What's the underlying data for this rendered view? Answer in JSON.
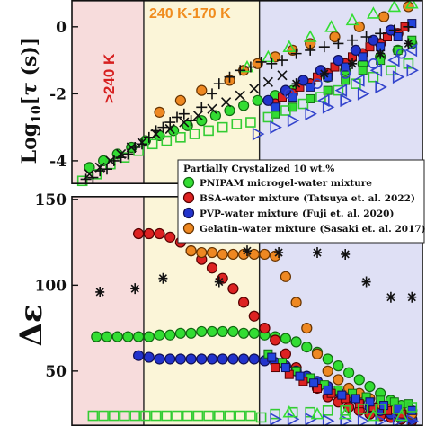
{
  "chart_data": [
    {
      "type": "scatter",
      "panel": "top",
      "ylabel": "Log10[τ (s)]",
      "ylabel_parts": {
        "main": "Log",
        "sub": "10",
        "rest": "[",
        "tau": "τ",
        "unit": " (s)]"
      },
      "yticks": [
        {
          "value": 0,
          "label": "0"
        },
        {
          "value": -2,
          "label": "-2"
        },
        {
          "value": -4,
          "label": "-4"
        }
      ],
      "ylim": [
        -4.7,
        0.8
      ],
      "xlim": [
        0,
        100
      ],
      "regions": [
        {
          "label": ">240 K",
          "x0": 0,
          "x1": 20.5,
          "color": "#f7dcdc",
          "text_color": "#d62020"
        },
        {
          "label": "240 K-170 K",
          "x0": 20.5,
          "x1": 53.5,
          "color": "#fbf5d8",
          "text_color": "#f08c1e"
        },
        {
          "label": "",
          "x0": 53.5,
          "x1": 100,
          "color": "#dfe0f5",
          "text_color": ""
        }
      ],
      "series": [
        {
          "marker": "circle",
          "fill": "#33dd33",
          "stroke": "#116611",
          "x": [
            5,
            9,
            13,
            17,
            21,
            25,
            29,
            33,
            37,
            41,
            45,
            49,
            53,
            58,
            63,
            68,
            73,
            78,
            83,
            88,
            93,
            97
          ],
          "y": [
            -4.2,
            -4.0,
            -3.8,
            -3.6,
            -3.4,
            -3.25,
            -3.1,
            -2.95,
            -2.8,
            -2.65,
            -2.5,
            -2.35,
            -2.2,
            -2.05,
            -1.9,
            -1.7,
            -1.5,
            -1.3,
            -1.1,
            -0.9,
            -0.7,
            -0.5
          ]
        },
        {
          "marker": "square",
          "fill": "#33dd33",
          "stroke": "#116611",
          "x": [
            58,
            63,
            68,
            73,
            78,
            83,
            88,
            93,
            97
          ],
          "y": [
            -2.6,
            -2.4,
            -2.15,
            -1.9,
            -1.6,
            -1.3,
            -1.0,
            -0.7,
            -0.4
          ]
        },
        {
          "marker": "circle",
          "fill": "#dd2222",
          "stroke": "#550000",
          "x": [
            58,
            63,
            68,
            73,
            78,
            83,
            88,
            93
          ],
          "y": [
            -2.3,
            -2.0,
            -1.7,
            -1.4,
            -1.1,
            -0.8,
            -0.5,
            -0.2
          ]
        },
        {
          "marker": "square",
          "fill": "#dd2222",
          "stroke": "#550000",
          "x": [
            60,
            65,
            70,
            75,
            80,
            85,
            90,
            95
          ],
          "y": [
            -2.1,
            -1.8,
            -1.5,
            -1.2,
            -0.9,
            -0.6,
            -0.3,
            0.0
          ]
        },
        {
          "marker": "square",
          "fill": "#2244dd",
          "stroke": "#111155",
          "x": [
            58,
            63,
            68,
            73,
            78,
            83,
            88,
            93,
            97
          ],
          "y": [
            -2.4,
            -2.1,
            -1.8,
            -1.5,
            -1.2,
            -0.9,
            -0.6,
            -0.3,
            0.1
          ]
        },
        {
          "marker": "circle",
          "fill": "#2233cc",
          "stroke": "#111155",
          "x": [
            56,
            61,
            66,
            71,
            76,
            81,
            86,
            91
          ],
          "y": [
            -2.2,
            -1.9,
            -1.6,
            -1.3,
            -1.0,
            -0.7,
            -0.4,
            -0.1
          ]
        },
        {
          "marker": "circle",
          "fill": "#ee8822",
          "stroke": "#663300",
          "x": [
            25,
            31,
            37,
            45,
            49,
            53,
            58,
            63,
            68,
            75,
            82,
            89,
            96
          ],
          "y": [
            -2.55,
            -2.2,
            -1.9,
            -1.6,
            -1.3,
            -1.1,
            -0.9,
            -0.7,
            -0.5,
            -0.3,
            0.0,
            0.3,
            0.6
          ]
        },
        {
          "marker": "open-square",
          "stroke": "#33cc33",
          "x": [
            3,
            7,
            11,
            15,
            19,
            23,
            27,
            31,
            35,
            39,
            43,
            47,
            51
          ],
          "y": [
            -4.6,
            -4.4,
            -4.1,
            -3.9,
            -3.7,
            -3.5,
            -3.4,
            -3.3,
            -3.2,
            -3.1,
            -3.0,
            -2.9,
            -2.85
          ]
        },
        {
          "marker": "open-square",
          "stroke": "#33cc33",
          "x": [
            56,
            61,
            66,
            71,
            76,
            81,
            86,
            91,
            96
          ],
          "y": [
            -2.7,
            -2.5,
            -2.3,
            -2.1,
            -1.9,
            -1.7,
            -1.5,
            -1.3,
            -1.1
          ]
        },
        {
          "marker": "open-tri-up",
          "stroke": "#33dd33",
          "x": [
            50,
            56,
            62,
            68,
            74,
            80,
            86,
            92,
            97
          ],
          "y": [
            -1.2,
            -0.9,
            -0.6,
            -0.3,
            0.0,
            0.2,
            0.4,
            0.6,
            0.7
          ]
        },
        {
          "marker": "open-tri-right",
          "stroke": "#3344cc",
          "x": [
            53,
            58,
            63,
            68,
            73,
            78,
            83,
            88,
            93,
            97
          ],
          "y": [
            -3.2,
            -3.0,
            -2.8,
            -2.6,
            -2.4,
            -2.2,
            -2.0,
            -1.8,
            -1.5,
            -1.3
          ]
        },
        {
          "marker": "open-tri-left",
          "stroke": "#3344cc",
          "x": [
            72,
            77,
            82,
            87,
            92,
            97
          ],
          "y": [
            -2.2,
            -1.9,
            -1.6,
            -1.3,
            -1.0,
            -0.7
          ]
        },
        {
          "marker": "open-circle",
          "stroke": "#3344cc",
          "x": [
            62,
            70,
            78,
            86,
            94
          ],
          "y": [
            -2.0,
            -1.7,
            -1.4,
            -1.1,
            -0.8
          ]
        },
        {
          "marker": "plus",
          "stroke": "#111111",
          "x": [
            4,
            6,
            8,
            10,
            12,
            14,
            16,
            18,
            20,
            22,
            24,
            26,
            28,
            30,
            32,
            34,
            37,
            40,
            42,
            45,
            48,
            51,
            54,
            57,
            60,
            64,
            68,
            72,
            76,
            80,
            84,
            88,
            92,
            96
          ],
          "y": [
            -4.55,
            -4.5,
            -4.3,
            -4.25,
            -4.0,
            -3.9,
            -3.8,
            -3.6,
            -3.5,
            -3.3,
            -3.1,
            -3.0,
            -2.85,
            -2.7,
            -2.6,
            -2.8,
            -2.4,
            -2.0,
            -1.7,
            -1.5,
            -1.3,
            -1.2,
            -1.05,
            -1.1,
            -1.0,
            -0.8,
            -0.7,
            -0.6,
            -0.5,
            -0.4,
            -0.3,
            -0.2,
            -0.1,
            0.0
          ]
        },
        {
          "marker": "cross",
          "stroke": "#111111",
          "x": [
            5,
            8,
            11,
            14,
            17,
            20,
            24,
            28,
            32,
            36,
            40,
            44,
            48,
            52,
            56,
            60
          ],
          "y": [
            -4.4,
            -4.2,
            -4.0,
            -3.8,
            -3.6,
            -3.45,
            -3.2,
            -3.05,
            -2.85,
            -2.65,
            -2.45,
            -2.25,
            -2.05,
            -1.85,
            -1.65,
            -1.45
          ]
        },
        {
          "marker": "star",
          "stroke": "#111111",
          "x": [
            64,
            72,
            80,
            88,
            96
          ],
          "y": [
            -1.7,
            -1.4,
            -1.1,
            -0.8,
            -0.5
          ]
        }
      ]
    },
    {
      "type": "scatter",
      "panel": "bottom",
      "ylabel": "Δε",
      "yticks": [
        {
          "value": 50,
          "label": "50"
        },
        {
          "value": 100,
          "label": "100"
        },
        {
          "value": 150,
          "label": "150"
        }
      ],
      "ylim": [
        18,
        152
      ],
      "xlim": [
        0,
        100
      ],
      "legend": {
        "placement": "top-right",
        "title": "Partially Crystalized 10 wt.%",
        "entries": [
          {
            "label": "PNIPAM microgel-water mixture",
            "fill": "#33dd33",
            "stroke": "#116611"
          },
          {
            "label": "BSA-water mixture (Tatsuya et. al. 2022)",
            "fill": "#dd2222",
            "stroke": "#550000"
          },
          {
            "label": "PVP-water mixture (Fuji et. al. 2020)",
            "fill": "#2233cc",
            "stroke": "#111155"
          },
          {
            "label": "Gelatin-water mixture (Sasaki et. al. 2017)",
            "fill": "#ee8822",
            "stroke": "#663300"
          }
        ]
      },
      "series": [
        {
          "marker": "circle",
          "fill": "#33dd33",
          "stroke": "#116611",
          "x": [
            7,
            10,
            13,
            16,
            19,
            22,
            25,
            28,
            31,
            34,
            37,
            40,
            43,
            46,
            49,
            52,
            55,
            58,
            61,
            64,
            67,
            70,
            73,
            76,
            79,
            82,
            85,
            88,
            91,
            94,
            97
          ],
          "y": [
            70,
            70,
            70,
            70,
            70,
            70,
            71,
            71,
            72,
            72,
            73,
            73,
            73,
            73,
            72,
            72,
            71,
            70,
            69,
            67,
            64,
            61,
            57,
            53,
            49,
            45,
            41,
            37,
            33,
            30,
            27
          ]
        },
        {
          "marker": "circle",
          "fill": "#dd2222",
          "stroke": "#550000",
          "x": [
            19,
            22,
            25,
            28,
            31,
            34,
            37,
            40,
            43,
            46,
            49,
            52,
            55,
            58,
            61,
            64,
            67,
            70,
            73,
            76,
            79,
            82,
            85,
            88,
            91,
            94,
            97
          ],
          "y": [
            130,
            130,
            130,
            128,
            125,
            120,
            115,
            110,
            104,
            98,
            90,
            82,
            75,
            68,
            60,
            52,
            46,
            40,
            35,
            32,
            29,
            27,
            25,
            24,
            23,
            22,
            21
          ]
        },
        {
          "marker": "circle",
          "fill": "#2233cc",
          "stroke": "#111155",
          "x": [
            19,
            22,
            25,
            28,
            31,
            34,
            37,
            40,
            43,
            46,
            49,
            52,
            55,
            58,
            61,
            64,
            67,
            70,
            73,
            76,
            79,
            82,
            85,
            88,
            91,
            94,
            97
          ],
          "y": [
            59,
            58,
            57,
            57,
            57,
            57,
            57,
            57,
            57,
            57,
            57,
            57,
            56,
            55,
            53,
            50,
            47,
            44,
            41,
            38,
            35,
            32,
            29,
            27,
            25,
            23,
            22
          ]
        },
        {
          "marker": "circle",
          "fill": "#ee8822",
          "stroke": "#663300",
          "x": [
            34,
            37,
            40,
            43,
            46,
            49,
            52,
            55,
            58,
            61,
            64,
            67,
            70,
            73,
            76,
            79,
            82,
            85,
            88,
            91,
            94,
            97
          ],
          "y": [
            120,
            119,
            119,
            118,
            118,
            118,
            118,
            118,
            117,
            105,
            90,
            75,
            60,
            50,
            45,
            40,
            37,
            34,
            31,
            28,
            26,
            25
          ]
        },
        {
          "marker": "square",
          "fill": "#33dd33",
          "stroke": "#116611",
          "x": [
            56,
            60,
            64,
            68,
            72,
            76,
            80,
            84,
            88,
            92,
            96
          ],
          "y": [
            60,
            55,
            50,
            46,
            42,
            39,
            37,
            35,
            33,
            32,
            31
          ]
        },
        {
          "marker": "square",
          "fill": "#dd2222",
          "stroke": "#550000",
          "x": [
            58,
            62,
            66,
            70,
            74,
            78,
            82,
            86,
            90,
            94
          ],
          "y": [
            52,
            48,
            44,
            40,
            37,
            34,
            31,
            29,
            27,
            25
          ]
        },
        {
          "marker": "square",
          "fill": "#2244dd",
          "stroke": "#111155",
          "x": [
            57,
            61,
            65,
            69,
            73,
            77,
            81,
            85,
            89,
            93,
            97
          ],
          "y": [
            58,
            52,
            47,
            43,
            39,
            36,
            34,
            32,
            30,
            28,
            27
          ]
        },
        {
          "marker": "open-square",
          "stroke": "#33cc33",
          "x": [
            6,
            9,
            12,
            15,
            18,
            21,
            24,
            27,
            30,
            33,
            36,
            39,
            42,
            45,
            48,
            51,
            54
          ],
          "y": [
            24,
            24,
            24,
            24,
            24,
            24,
            24,
            24,
            24,
            24,
            24,
            24,
            24,
            24,
            24,
            24,
            23
          ]
        },
        {
          "marker": "open-square",
          "stroke": "#33cc33",
          "x": [
            58,
            63,
            68,
            73,
            78,
            83,
            88,
            93,
            97
          ],
          "y": [
            25,
            26,
            26,
            27,
            27,
            28,
            28,
            28,
            29
          ]
        },
        {
          "marker": "open-tri-right",
          "stroke": "#3344cc",
          "x": [
            58,
            63,
            68,
            73,
            78,
            83,
            88,
            93,
            97
          ],
          "y": [
            22,
            22,
            22,
            21,
            21,
            21,
            21,
            21,
            21
          ]
        },
        {
          "marker": "open-tri-up",
          "stroke": "#33dd33",
          "x": [
            62,
            70,
            78,
            86,
            94
          ],
          "y": [
            26,
            25,
            25,
            24,
            24
          ]
        },
        {
          "marker": "star",
          "stroke": "#111111",
          "x": [
            8,
            18,
            26,
            42,
            50,
            59,
            70,
            78,
            84,
            91,
            97
          ],
          "y": [
            96,
            98,
            104,
            102,
            120,
            119,
            119,
            118,
            102,
            93,
            93
          ]
        }
      ]
    }
  ]
}
